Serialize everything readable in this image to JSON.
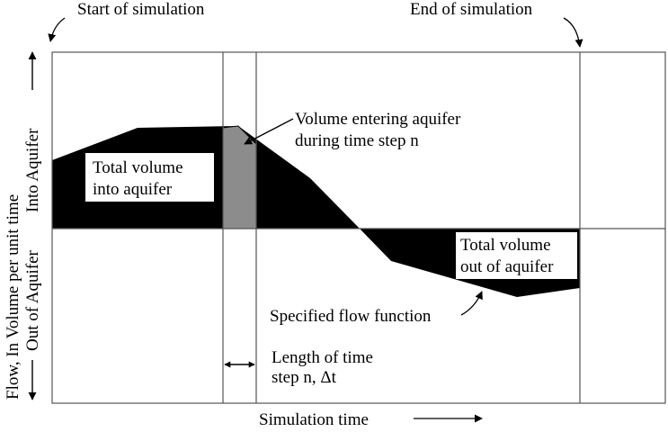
{
  "annotations": {
    "start_of_simulation": "Start of simulation",
    "end_of_simulation": "End of simulation",
    "volume_entering_line1": "Volume entering aquifer",
    "volume_entering_line2": "during time step n",
    "total_in_line1": "Total volume",
    "total_in_line2": "into aquifer",
    "total_out_line1": "Total volume",
    "total_out_line2": "out of aquifer",
    "specified_flow_function": "Specified flow function",
    "length_line1": "Length of time",
    "length_line2": "step n, Δt"
  },
  "axes": {
    "x_label": "Simulation time",
    "y_label_line1": "Flow, In Volume per unit time",
    "y_label_into": "Into Aquifer",
    "y_label_out": "Out of Aquifer"
  },
  "colors": {
    "flow_fill": "#000000",
    "time_step_fill": "#8c8c8c",
    "frame": "#555555"
  }
}
